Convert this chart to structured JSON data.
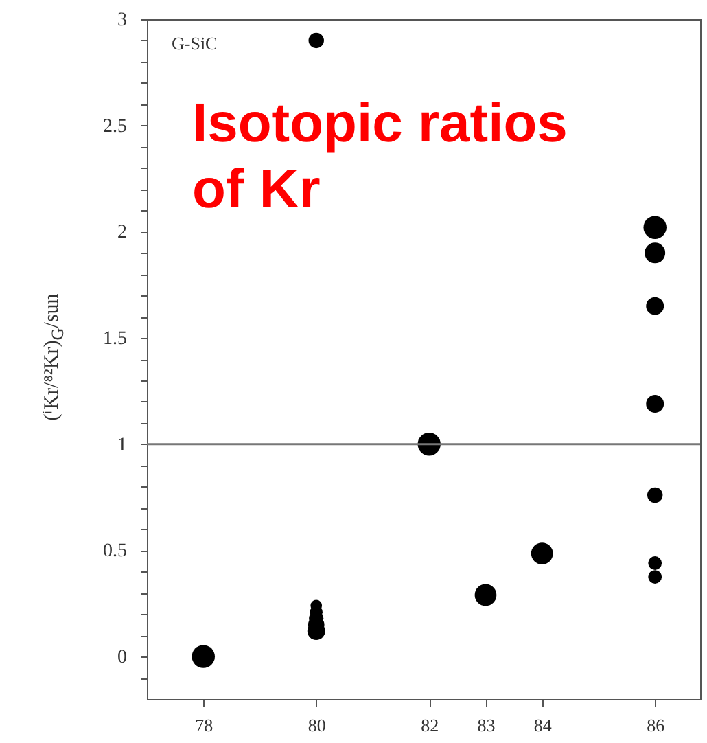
{
  "chart_data": {
    "type": "bubble",
    "title": "Isotopic ratios of Kr",
    "ylabel": "(ⁱKr/⁸²Kr)$_{G}$/sun",
    "annotations": [
      "G-SiC"
    ],
    "series": [
      {
        "color": "#000000",
        "x": [
          78,
          80,
          80,
          80,
          80,
          80,
          80,
          82,
          83,
          84,
          86,
          86,
          86,
          86,
          86,
          86,
          86
        ],
        "values": [
          0,
          0.12,
          0.15,
          0.18,
          0.21,
          0.24,
          2.9,
          1,
          0.29,
          0.485,
          2.02,
          1.9,
          1.65,
          1.19,
          0.76,
          0.44,
          0.375
        ],
        "sizes": [
          1,
          0.6,
          0.5,
          0.4,
          0.3,
          0.25,
          0.45,
          1,
          0.9,
          0.9,
          1,
          0.8,
          0.6,
          0.6,
          0.45,
          0.35,
          0.35
        ]
      }
    ],
    "xlim": [
      77,
      86.8
    ],
    "xticks": [
      78,
      80,
      82,
      83,
      84,
      86
    ],
    "ylim": [
      -0.2,
      3
    ],
    "yticks": [
      {
        "value": -0.1,
        "label": null
      },
      0,
      {
        "value": 0.1,
        "label": null
      },
      {
        "value": 0.2,
        "label": null
      },
      {
        "value": 0.3,
        "label": null
      },
      {
        "value": 0.4,
        "label": null
      },
      {
        "value": 0.5,
        "label": "0.5"
      },
      {
        "value": 0.6,
        "label": null
      },
      {
        "value": 0.7,
        "label": null
      },
      {
        "value": 0.8,
        "label": null
      },
      {
        "value": 0.9,
        "label": null
      },
      1,
      {
        "value": 1.1,
        "label": null
      },
      {
        "value": 1.2,
        "label": null
      },
      {
        "value": 1.3,
        "label": null
      },
      {
        "value": 1.4,
        "label": null
      },
      {
        "value": 1.5,
        "label": "1.5"
      },
      {
        "value": 1.6,
        "label": null
      },
      {
        "value": 1.7,
        "label": null
      },
      {
        "value": 1.8,
        "label": null
      },
      {
        "value": 1.9,
        "label": null
      },
      2,
      {
        "value": 2.1,
        "label": null
      },
      {
        "value": 2.2,
        "label": null
      },
      {
        "value": 2.3,
        "label": null
      },
      {
        "value": 2.4,
        "label": null
      },
      {
        "value": 2.5,
        "label": "2.5"
      },
      {
        "value": 2.6,
        "label": null
      },
      {
        "value": 2.7,
        "label": null
      },
      {
        "value": 2.8,
        "label": null
      },
      {
        "value": 2.9,
        "label": null
      },
      3
    ],
    "ref_lines": [
      {
        "axis": "y",
        "value": 1,
        "color": "#777777"
      }
    ],
    "grid": false,
    "marker": "circle"
  }
}
